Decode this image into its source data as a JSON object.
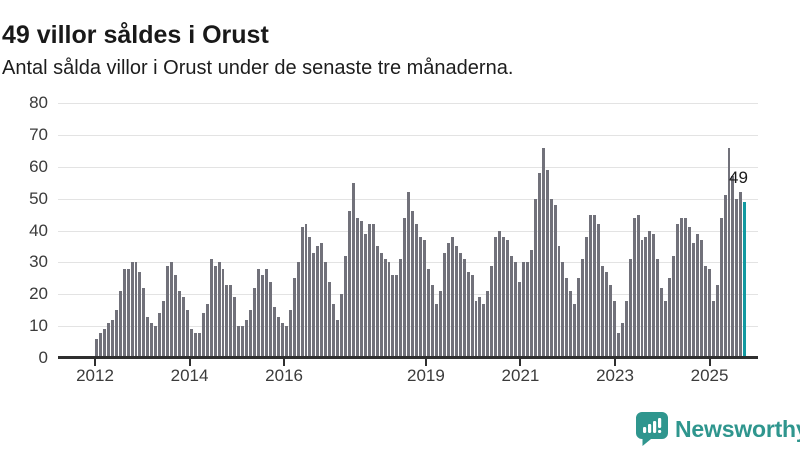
{
  "header": {
    "title": "49 villor såldes i Orust",
    "subtitle": "Antal sålda villor i Orust under de senaste tre månaderna."
  },
  "chart_data": {
    "type": "bar",
    "title": "49 villor såldes i Orust",
    "frequency": "monthly",
    "start_year": 2012,
    "values": [
      6,
      8,
      9,
      11,
      12,
      15,
      21,
      28,
      28,
      30,
      30,
      27,
      22,
      13,
      11,
      10,
      14,
      18,
      29,
      30,
      26,
      21,
      19,
      15,
      9,
      8,
      8,
      14,
      17,
      31,
      29,
      30,
      28,
      23,
      23,
      19,
      10,
      10,
      12,
      15,
      22,
      28,
      26,
      28,
      24,
      16,
      13,
      11,
      10,
      15,
      25,
      30,
      41,
      42,
      38,
      33,
      35,
      36,
      30,
      24,
      17,
      12,
      20,
      32,
      46,
      55,
      44,
      43,
      39,
      42,
      42,
      35,
      33,
      31,
      30,
      26,
      26,
      31,
      44,
      52,
      46,
      42,
      38,
      37,
      28,
      23,
      17,
      21,
      33,
      36,
      38,
      35,
      33,
      31,
      27,
      26,
      18,
      19,
      17,
      21,
      29,
      38,
      40,
      38,
      37,
      32,
      30,
      24,
      30,
      30,
      34,
      50,
      58,
      66,
      59,
      50,
      48,
      35,
      30,
      25,
      21,
      17,
      25,
      31,
      38,
      45,
      45,
      42,
      29,
      27,
      23,
      18,
      8,
      11,
      18,
      31,
      44,
      45,
      37,
      38,
      40,
      39,
      31,
      22,
      18,
      25,
      32,
      42,
      44,
      44,
      41,
      36,
      39,
      37,
      29,
      28,
      18,
      23,
      44,
      51,
      66,
      57,
      50,
      52,
      49
    ],
    "highlight_index": 164,
    "highlight_value": 49,
    "annotation_label": "49",
    "ylim": [
      0,
      80
    ],
    "yticks": [
      0,
      10,
      20,
      30,
      40,
      50,
      60,
      70,
      80
    ],
    "x_tick_years": [
      2012,
      2014,
      2016,
      2019,
      2021,
      2023,
      2025
    ],
    "grid": true,
    "legend": "none",
    "bar_color": "#71717a",
    "highlight_color": "#129aa1",
    "grid_color": "#e3e3e3",
    "axis_color": "#2f2f2f"
  },
  "footer": {
    "brand": "Newsworthy",
    "brand_color": "#2f968e",
    "icon": "newsworthy-speech-bubble-barchart-icon"
  }
}
